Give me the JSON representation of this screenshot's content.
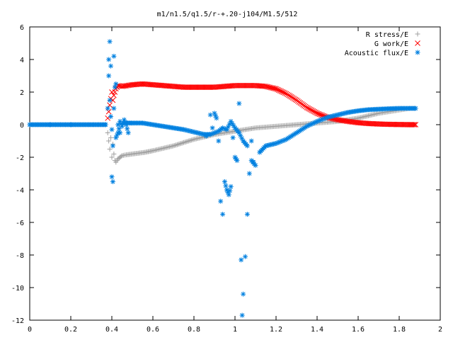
{
  "chart_data": {
    "type": "scatter",
    "title": "m1/n1.5/q1.5/r-+.20-j104/M1.5/512",
    "xlabel": "",
    "ylabel": "",
    "xlim": [
      0,
      2
    ],
    "ylim": [
      -12,
      6
    ],
    "x_ticks": [
      0,
      0.2,
      0.4,
      0.6,
      0.8,
      1,
      1.2,
      1.4,
      1.6,
      1.8,
      2
    ],
    "x_tick_labels": [
      "0",
      "0.2",
      "0.4",
      "0.6",
      "0.8",
      "1",
      "1.2",
      "1.4",
      "1.6",
      "1.8",
      "2"
    ],
    "y_ticks": [
      -12,
      -10,
      -8,
      -6,
      -4,
      -2,
      0,
      2,
      4,
      6
    ],
    "y_tick_labels": [
      "-12",
      "-10",
      "-8",
      "-6",
      "-4",
      "-2",
      "0",
      "2",
      "4",
      "6"
    ],
    "grid": false,
    "legend_position": "top-right",
    "series": [
      {
        "name": "R stress/E",
        "marker": "plus",
        "color": "#a0a0a0",
        "x": [
          0.38,
          0.385,
          0.39,
          0.395,
          0.4,
          0.405,
          0.41,
          0.415,
          0.42,
          0.43,
          0.44,
          0.45,
          0.47,
          0.5,
          0.53,
          0.56,
          0.6,
          0.65,
          0.7,
          0.75,
          0.8,
          0.85,
          0.9,
          0.95,
          1.0,
          1.05,
          1.1,
          1.15,
          1.2,
          1.25,
          1.3,
          1.35,
          1.4,
          1.45,
          1.5,
          1.55,
          1.6,
          1.65,
          1.7,
          1.75,
          1.8,
          1.85,
          1.88
        ],
        "y": [
          -0.5,
          -1.0,
          -1.5,
          -0.8,
          -2.0,
          -1.2,
          -1.8,
          -2.2,
          -2.3,
          -2.1,
          -2.0,
          -1.9,
          -1.85,
          -1.8,
          -1.75,
          -1.7,
          -1.6,
          -1.45,
          -1.3,
          -1.1,
          -0.9,
          -0.75,
          -0.6,
          -0.5,
          -0.4,
          -0.3,
          -0.2,
          -0.15,
          -0.1,
          -0.05,
          0.0,
          0.05,
          0.1,
          0.15,
          0.2,
          0.3,
          0.4,
          0.55,
          0.7,
          0.8,
          0.9,
          1.0,
          1.0
        ]
      },
      {
        "name": "G work/E",
        "marker": "cross",
        "color": "#ff0000",
        "x": [
          0.38,
          0.385,
          0.39,
          0.395,
          0.4,
          0.405,
          0.41,
          0.42,
          0.43,
          0.45,
          0.5,
          0.55,
          0.6,
          0.65,
          0.7,
          0.75,
          0.8,
          0.85,
          0.9,
          0.95,
          1.0,
          1.05,
          1.1,
          1.15,
          1.2,
          1.25,
          1.3,
          1.35,
          1.4,
          1.45,
          1.5,
          1.55,
          1.6,
          1.65,
          1.7,
          1.75,
          1.8,
          1.85,
          1.88
        ],
        "y": [
          0.4,
          0.8,
          1.2,
          1.6,
          2.0,
          1.5,
          1.8,
          2.2,
          2.4,
          2.35,
          2.45,
          2.5,
          2.45,
          2.4,
          2.35,
          2.3,
          2.3,
          2.3,
          2.3,
          2.35,
          2.4,
          2.4,
          2.4,
          2.35,
          2.2,
          1.9,
          1.5,
          1.05,
          0.7,
          0.45,
          0.3,
          0.2,
          0.12,
          0.07,
          0.04,
          0.02,
          0.01,
          0.0,
          0.0
        ]
      },
      {
        "name": "Acoustic flux/E",
        "marker": "star",
        "color": "#0080e0",
        "x": [
          0.0,
          0.1,
          0.2,
          0.3,
          0.37,
          0.38,
          0.385,
          0.39,
          0.395,
          0.4,
          0.405,
          0.41,
          0.42,
          0.43,
          0.44,
          0.46,
          0.5,
          0.55,
          0.6,
          0.65,
          0.7,
          0.75,
          0.8,
          0.85,
          0.88,
          0.9,
          0.92,
          0.94,
          0.96,
          0.98,
          1.0,
          1.02,
          1.04,
          1.06,
          1.08,
          1.1,
          1.12,
          1.15,
          1.2,
          1.25,
          1.3,
          1.35,
          1.4,
          1.45,
          1.5,
          1.55,
          1.6,
          1.65,
          1.7,
          1.75,
          1.8,
          1.85,
          1.88,
          0.385,
          0.39,
          0.395,
          0.4,
          0.405,
          0.41,
          0.415,
          0.42,
          0.43,
          0.44,
          0.45,
          0.46,
          0.47,
          0.48,
          0.86,
          0.88,
          0.89,
          0.9,
          0.91,
          0.92,
          0.93,
          0.94,
          0.95,
          0.96,
          0.97,
          0.98,
          0.99,
          1.0,
          1.01,
          1.02,
          1.03,
          1.035,
          1.04,
          1.05,
          1.06,
          1.07,
          1.08,
          1.09
        ],
        "y": [
          0.0,
          0.0,
          0.0,
          0.0,
          0.0,
          1.0,
          3.0,
          5.1,
          3.6,
          -3.2,
          -3.5,
          4.2,
          2.5,
          0.0,
          -0.5,
          0.1,
          0.1,
          0.1,
          0.0,
          -0.1,
          -0.2,
          -0.3,
          -0.45,
          -0.6,
          -0.6,
          -0.5,
          -0.4,
          -0.2,
          -0.3,
          0.2,
          -0.2,
          -0.5,
          -1.0,
          -1.3,
          -2.2,
          -2.5,
          -1.7,
          -1.3,
          -1.15,
          -0.9,
          -0.5,
          -0.1,
          0.2,
          0.45,
          0.6,
          0.75,
          0.85,
          0.92,
          0.95,
          0.98,
          1.0,
          1.0,
          1.0,
          4.0,
          1.5,
          0.5,
          -0.3,
          -1.3,
          1.0,
          2.3,
          -0.8,
          -0.5,
          0.2,
          -0.1,
          0.3,
          0.0,
          -0.5,
          -0.7,
          0.6,
          -0.2,
          0.7,
          0.4,
          -1.0,
          -4.7,
          -5.5,
          -3.5,
          -4.0,
          -4.3,
          -3.8,
          -0.8,
          -2.0,
          -2.2,
          1.3,
          -8.3,
          -11.7,
          -10.4,
          -8.1,
          -5.5,
          -3.0,
          -1.0,
          -2.3
        ]
      }
    ]
  }
}
